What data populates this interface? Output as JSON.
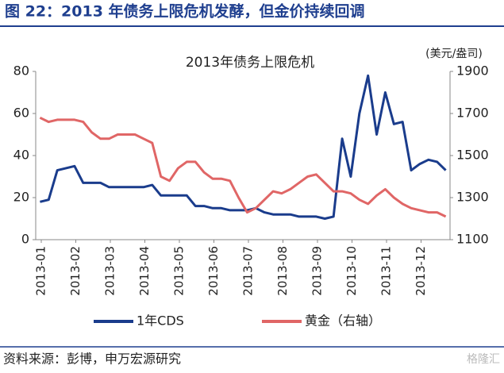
{
  "header": {
    "title": "图 22：2013 年债务上限危机发酵，但金价持续回调"
  },
  "chart_data": {
    "type": "line",
    "title": "2013年债务上限危机",
    "y2_label": "(美元/盎司)",
    "xticks": [
      "2013-01",
      "2013-02",
      "2013-03",
      "2013-04",
      "2013-05",
      "2013-06",
      "2013-07",
      "2013-08",
      "2013-09",
      "2013-10",
      "2013-11",
      "2013-12"
    ],
    "ylim": [
      0,
      80
    ],
    "yticks": [
      0,
      20,
      40,
      60,
      80
    ],
    "y2lim": [
      1100,
      1900
    ],
    "y2ticks": [
      1100,
      1300,
      1500,
      1700,
      1900
    ],
    "series": [
      {
        "name": "1年CDS",
        "color": "#1a3c8c",
        "values": [
          18,
          19,
          33,
          34,
          35,
          27,
          27,
          27,
          25,
          25,
          25,
          25,
          25,
          26,
          21,
          21,
          21,
          21,
          16,
          16,
          15,
          15,
          14,
          14,
          14,
          15,
          13,
          12,
          12,
          12,
          11,
          11,
          11,
          10,
          11,
          48,
          30,
          60,
          78,
          50,
          70,
          55,
          56,
          33,
          36,
          38,
          37,
          33
        ]
      },
      {
        "name": "黄金（右轴）",
        "color": "#e06666",
        "axis": "y2",
        "values": [
          1680,
          1660,
          1670,
          1670,
          1670,
          1660,
          1610,
          1580,
          1580,
          1600,
          1600,
          1600,
          1580,
          1560,
          1400,
          1380,
          1440,
          1470,
          1470,
          1420,
          1390,
          1390,
          1380,
          1300,
          1230,
          1250,
          1290,
          1330,
          1320,
          1340,
          1370,
          1400,
          1410,
          1370,
          1330,
          1330,
          1320,
          1290,
          1270,
          1310,
          1340,
          1300,
          1270,
          1250,
          1240,
          1230,
          1230,
          1210
        ]
      }
    ]
  },
  "footer": {
    "source": "资料来源：彭博，申万宏源研究",
    "watermark": "格隆汇"
  }
}
